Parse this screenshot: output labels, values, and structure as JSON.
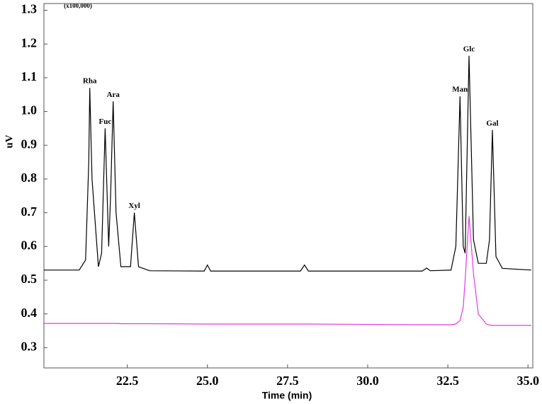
{
  "chart_data": {
    "type": "line",
    "ylabel": "uV",
    "xlabel": "Time (min)",
    "yscale_note": "(x100,000)",
    "xlim": [
      19.9,
      35.15
    ],
    "ylim": [
      0.24,
      1.32
    ],
    "xticks": [
      22.5,
      {
        "value": 25,
        "label": "25.0"
      },
      27.5,
      {
        "value": 30,
        "label": "30.0"
      },
      32.5,
      {
        "value": 35,
        "label": "35.0"
      }
    ],
    "yticks": [
      0.3,
      0.4,
      0.5,
      0.6,
      0.7,
      0.8,
      0.9,
      {
        "value": 1,
        "label": "1.0"
      },
      1.1,
      1.2,
      1.3
    ],
    "x": [
      19.9,
      21.0,
      21.2,
      21.3,
      21.33,
      21.4,
      21.6,
      21.7,
      21.81,
      21.92,
      21.98,
      22.06,
      22.15,
      22.3,
      22.6,
      22.72,
      22.85,
      23.2,
      24.9,
      25.0,
      25.1,
      27.9,
      28.03,
      28.15,
      31.7,
      31.84,
      31.95,
      32.6,
      32.75,
      32.88,
      32.98,
      33.04,
      33.16,
      33.3,
      33.45,
      33.7,
      33.8,
      33.89,
      34.0,
      34.2,
      35.1
    ],
    "series": [
      {
        "color": "#000000",
        "values": [
          0.53,
          0.53,
          0.56,
          0.85,
          1.07,
          0.8,
          0.54,
          0.58,
          0.95,
          0.6,
          0.75,
          1.03,
          0.7,
          0.54,
          0.54,
          0.7,
          0.54,
          0.528,
          0.527,
          0.545,
          0.527,
          0.527,
          0.545,
          0.527,
          0.527,
          0.536,
          0.528,
          0.53,
          0.6,
          1.045,
          0.6,
          0.58,
          1.165,
          0.62,
          0.55,
          0.55,
          0.62,
          0.945,
          0.57,
          0.535,
          0.53
        ]
      },
      {
        "color": "#e03ce0",
        "values": [
          0.372,
          0.372,
          0.372,
          0.372,
          0.372,
          0.372,
          0.372,
          0.372,
          0.372,
          0.372,
          0.372,
          0.372,
          0.372,
          0.371,
          0.371,
          0.371,
          0.371,
          0.371,
          0.37,
          0.37,
          0.37,
          0.37,
          0.37,
          0.37,
          0.368,
          0.368,
          0.368,
          0.368,
          0.37,
          0.38,
          0.42,
          0.5,
          0.69,
          0.52,
          0.4,
          0.37,
          0.367,
          0.366,
          0.366,
          0.366,
          0.366
        ]
      }
    ],
    "annotations": [
      {
        "text": "Rha",
        "x": 21.33,
        "y": 1.07
      },
      {
        "text": "Fuc",
        "x": 21.81,
        "y": 0.95
      },
      {
        "text": "Ara",
        "x": 22.06,
        "y": 1.03
      },
      {
        "text": "Xyl",
        "x": 22.72,
        "y": 0.7
      },
      {
        "text": "Man",
        "x": 32.88,
        "y": 1.045
      },
      {
        "text": "Glc",
        "x": 33.16,
        "y": 1.165
      },
      {
        "text": "Gal",
        "x": 33.89,
        "y": 0.945
      }
    ]
  }
}
